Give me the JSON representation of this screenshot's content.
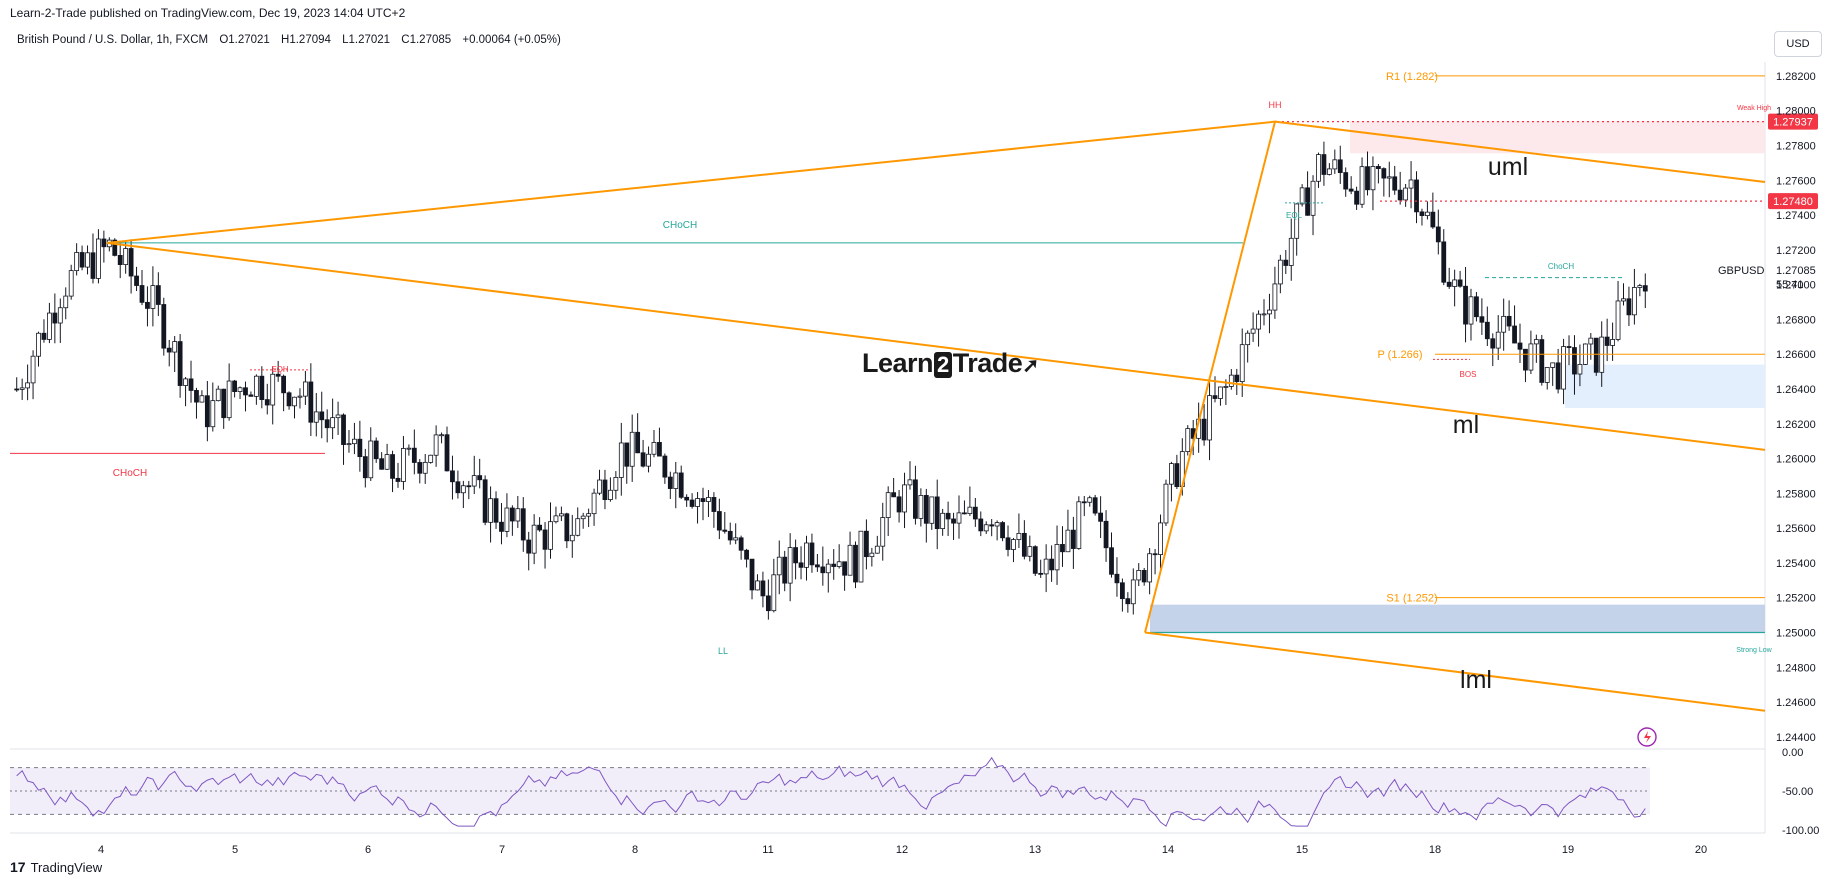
{
  "header": {
    "publish_text": "Learn-2-Trade published on TradingView.com, Dec 19, 2023 14:04 UTC+2",
    "symbol": "British Pound / U.S. Dollar, 1h, FXCM",
    "open": "O1.27021",
    "high": "H1.27094",
    "low": "L1.27021",
    "close": "C1.27085",
    "change": "+0.00064 (+0.05%)"
  },
  "currency_button": "USD",
  "footer": {
    "brand": "TradingView",
    "mark": "17"
  },
  "watermark": {
    "before": "Learn",
    "middle": "2",
    "after": "Trade"
  },
  "chart_data": [
    {
      "type": "line",
      "title": "British Pound / U.S. Dollar, 1h, FXCM",
      "y_axis_side": "right",
      "ylim": [
        1.2433,
        1.2828
      ],
      "yticks": [
        "1.28200",
        "1.28000",
        "1.27800",
        "1.27600",
        "1.27400",
        "1.27200",
        "1.27000",
        "1.26800",
        "1.26600",
        "1.26400",
        "1.26200",
        "1.26000",
        "1.25800",
        "1.25600",
        "1.25400",
        "1.25200",
        "1.25000",
        "1.24800",
        "1.24600",
        "1.24400"
      ],
      "xticks": [
        "4",
        "5",
        "6",
        "7",
        "8",
        "11",
        "12",
        "13",
        "14",
        "15",
        "18",
        "19",
        "20"
      ],
      "price_label": {
        "symbol": "GBPUSD",
        "value": "1.27085",
        "countdown": "55:41"
      },
      "marked_levels": [
        {
          "value": 1.27937,
          "label": "1.27937",
          "color": "#f23645"
        },
        {
          "value": 1.2748,
          "label": "1.27480",
          "color": "#f23645"
        }
      ],
      "pivots": [
        {
          "label": "R1 (1.282)",
          "value": 1.282
        },
        {
          "label": "P (1.266)",
          "value": 1.266
        },
        {
          "label": "S1 (1.252)",
          "value": 1.252
        }
      ],
      "structure_labels": [
        "CHoCH",
        "CHoCH",
        "EQH",
        "HH",
        "EQL",
        "LL",
        "BOS",
        "ChoCH",
        "Weak High",
        "Strong Low"
      ],
      "channel_labels": [
        "uml",
        "ml",
        "lml"
      ],
      "series": [
        {
          "x": [
            "Dec 1",
            "Dec 4",
            "Dec 4",
            "Dec 4",
            "Dec 5",
            "Dec 5",
            "Dec 5",
            "Dec 6",
            "Dec 6",
            "Dec 6",
            "Dec 7",
            "Dec 7",
            "Dec 7",
            "Dec 8",
            "Dec 8",
            "Dec 8",
            "Dec 11",
            "Dec 11",
            "Dec 11",
            "Dec 12",
            "Dec 12",
            "Dec 12",
            "Dec 13",
            "Dec 13",
            "Dec 13",
            "Dec 14",
            "Dec 14",
            "Dec 14",
            "Dec 15",
            "Dec 15",
            "Dec 15",
            "Dec 18",
            "Dec 18",
            "Dec 18",
            "Dec 19",
            "Dec 19"
          ],
          "values": [
            1.264,
            1.27,
            1.2722,
            1.2685,
            1.2625,
            1.2645,
            1.264,
            1.261,
            1.259,
            1.2608,
            1.2575,
            1.2555,
            1.256,
            1.2605,
            1.2595,
            1.257,
            1.252,
            1.255,
            1.254,
            1.258,
            1.256,
            1.257,
            1.253,
            1.257,
            1.252,
            1.26,
            1.264,
            1.27,
            1.277,
            1.2755,
            1.276,
            1.269,
            1.267,
            1.265,
            1.266,
            1.27085
          ]
        }
      ],
      "rsi": {
        "ylim": [
          -100,
          0
        ],
        "yticks": [
          "0.00",
          "-50.00",
          "-100.00"
        ]
      }
    }
  ]
}
